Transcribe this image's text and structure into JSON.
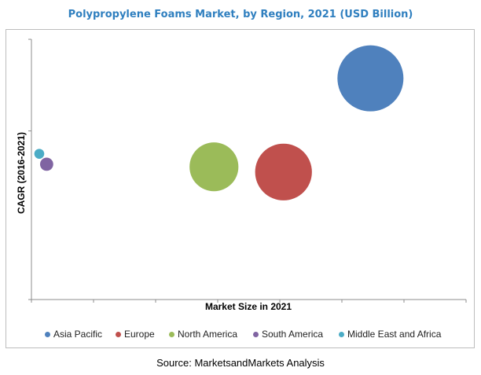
{
  "chart_data": {
    "type": "bubble",
    "title": "Polypropylene Foams Market, by Region, 2021 (USD Billion)",
    "xlabel": "Market Size in 2021",
    "ylabel": "CAGR (2016-2021)",
    "source": "Source: MarketsandMarkets Analysis",
    "grid": false,
    "legend_position": "bottom",
    "xlim": [
      0,
      10
    ],
    "ylim": [
      0,
      10
    ],
    "series": [
      {
        "name": "Asia Pacific",
        "x": 7.8,
        "y": 8.5,
        "size": 1.0,
        "color": "#4f81bd"
      },
      {
        "name": "Europe",
        "x": 5.8,
        "y": 4.9,
        "size": 0.86,
        "color": "#c0504d"
      },
      {
        "name": "North America",
        "x": 4.2,
        "y": 5.1,
        "size": 0.74,
        "color": "#9bbb59"
      },
      {
        "name": "South America",
        "x": 0.35,
        "y": 5.2,
        "size": 0.2,
        "color": "#8064a2"
      },
      {
        "name": "Middle East and Africa",
        "x": 0.18,
        "y": 5.6,
        "size": 0.15,
        "color": "#4bacc6"
      }
    ]
  }
}
